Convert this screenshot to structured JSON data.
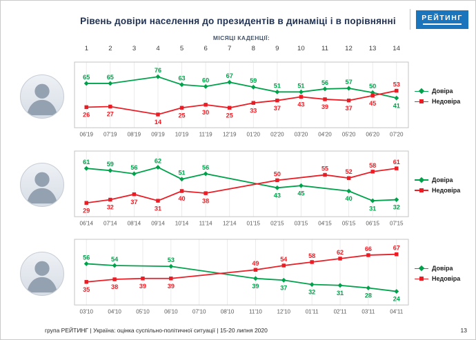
{
  "slide": {
    "title": "Рівень довіри населення до президентів в динаміці і в порівнянні",
    "logo_text": "РЕЙТИНГ",
    "colors": {
      "trust_green": "#00A14B",
      "distrust_red": "#EC1C24",
      "logo_blue": "#1B75BC",
      "title_navy": "#1F3050"
    }
  },
  "header": {
    "cadence_label": "МІСЯЦІ КАДЕНЦІЇ:",
    "cadence_numbers": [
      "1",
      "2",
      "3",
      "4",
      "5",
      "6",
      "7",
      "8",
      "9",
      "10",
      "11",
      "12",
      "13",
      "14"
    ]
  },
  "chart_data": [
    {
      "type": "line",
      "photo_icon": "zelensky-portrait",
      "x": [
        "06'19",
        "07'19",
        "08'19",
        "09'19",
        "10'19",
        "11'19",
        "12'19",
        "01'20",
        "02'20",
        "03'20",
        "04'20",
        "05'20",
        "06'20",
        "07'20"
      ],
      "series": [
        {
          "name": "Довіра",
          "color": "#00A14B",
          "marker": "diamond",
          "values": [
            65,
            65,
            null,
            76,
            63,
            60,
            67,
            59,
            51,
            51,
            56,
            57,
            50,
            41
          ]
        },
        {
          "name": "Недовіра",
          "color": "#EC1C24",
          "marker": "square",
          "values": [
            26,
            27,
            null,
            14,
            25,
            30,
            25,
            33,
            37,
            43,
            39,
            37,
            45,
            53
          ]
        }
      ],
      "ylim": [
        6,
        84
      ],
      "grid": "vertical",
      "legend_position": "right"
    },
    {
      "type": "line",
      "photo_icon": "poroshenko-portrait",
      "x": [
        "06'14",
        "07'14",
        "08'14",
        "09'14",
        "10'14",
        "11'14",
        "12'14",
        "01'15",
        "02'15",
        "03'15",
        "04'15",
        "05'15",
        "06'15",
        "07'15"
      ],
      "series": [
        {
          "name": "Довіра",
          "color": "#00A14B",
          "marker": "diamond",
          "values": [
            61,
            59,
            56,
            62,
            51,
            56,
            null,
            null,
            43,
            45,
            null,
            40,
            31,
            32
          ]
        },
        {
          "name": "Недовіра",
          "color": "#EC1C24",
          "marker": "square",
          "values": [
            29,
            32,
            37,
            31,
            40,
            38,
            null,
            null,
            50,
            null,
            55,
            52,
            58,
            61
          ]
        }
      ],
      "ylim": [
        24,
        68
      ],
      "grid": "vertical",
      "legend_position": "right"
    },
    {
      "type": "line",
      "photo_icon": "yanukovych-portrait",
      "x": [
        "03'10",
        "04'10",
        "05'10",
        "06'10",
        "07'10",
        "08'10",
        "11'10",
        "12'10",
        "01'11",
        "02'11",
        "03'11",
        "04'11"
      ],
      "series": [
        {
          "name": "Довіра",
          "color": "#00A14B",
          "marker": "diamond",
          "values": [
            56,
            54,
            null,
            53,
            null,
            null,
            39,
            37,
            32,
            31,
            28,
            24
          ]
        },
        {
          "name": "Недовіра",
          "color": "#EC1C24",
          "marker": "square",
          "values": [
            35,
            38,
            39,
            39,
            null,
            null,
            49,
            54,
            58,
            62,
            66,
            67
          ]
        }
      ],
      "ylim": [
        18,
        73
      ],
      "grid": "vertical",
      "legend_position": "right"
    }
  ],
  "footer": {
    "source": "група РЕЙТИНГ |  Україна: оцінка суспільно-політичної ситуації  | 15-20 липня 2020",
    "page": "13"
  }
}
